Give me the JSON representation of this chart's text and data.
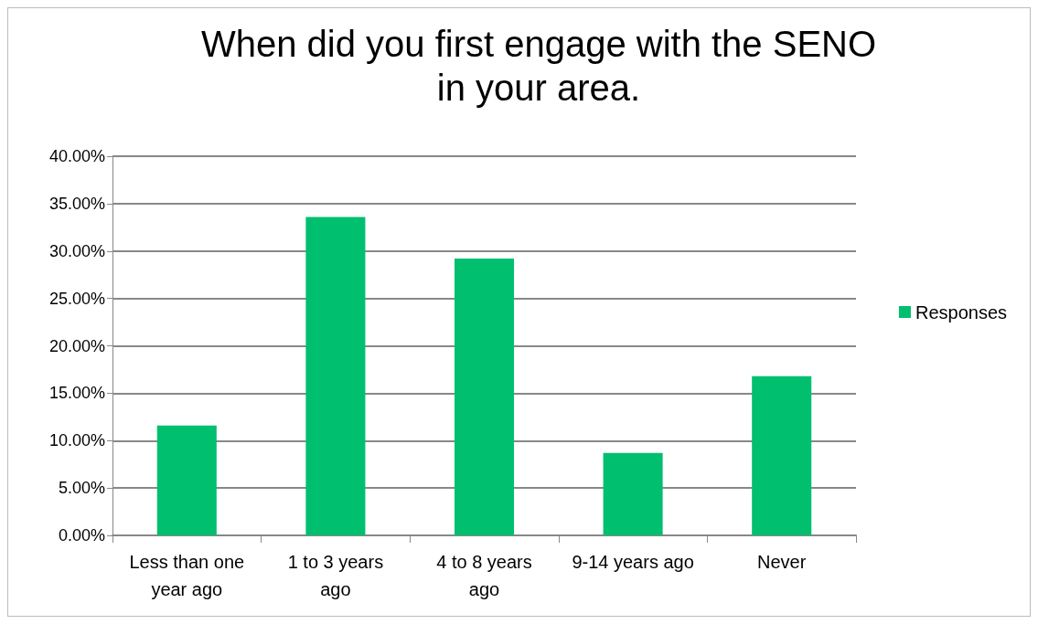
{
  "chart_data": {
    "type": "bar",
    "title": "When did you first engage with the SENO\nin your area.",
    "categories": [
      "Less than one\nyear ago",
      "1 to 3 years\nago",
      "4 to 8 years\nago",
      "9-14 years ago",
      "Never"
    ],
    "series": [
      {
        "name": "Responses",
        "color": "#00bf6f",
        "values": [
          11.6,
          33.6,
          29.2,
          8.7,
          16.8
        ]
      }
    ],
    "ylim": [
      0,
      40
    ],
    "yticks": [
      {
        "value": 0,
        "label": "0.00%"
      },
      {
        "value": 5,
        "label": "5.00%"
      },
      {
        "value": 10,
        "label": "10.00%"
      },
      {
        "value": 15,
        "label": "15.00%"
      },
      {
        "value": 20,
        "label": "20.00%"
      },
      {
        "value": 25,
        "label": "25.00%"
      },
      {
        "value": 30,
        "label": "30.00%"
      },
      {
        "value": 35,
        "label": "35.00%"
      },
      {
        "value": 40,
        "label": "40.00%"
      }
    ],
    "grid": "y",
    "legend": "right"
  }
}
